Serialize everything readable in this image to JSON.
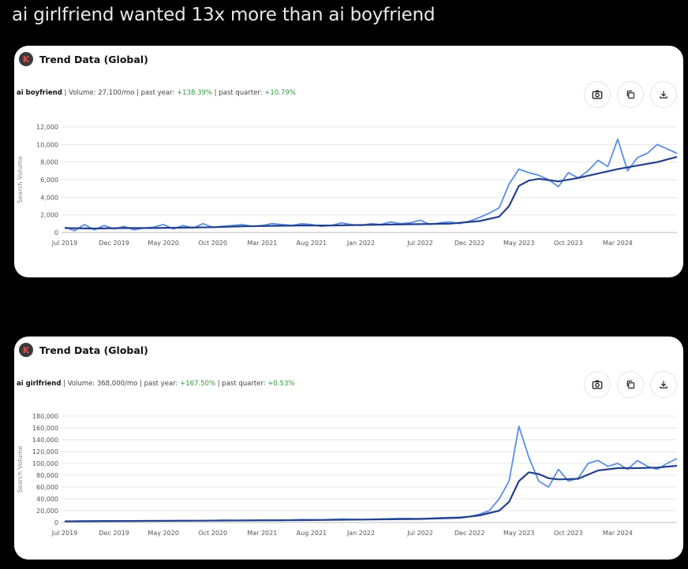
{
  "post": {
    "title": "ai girlfriend wanted 13x more than ai boyfriend"
  },
  "cards": [
    {
      "logo_letter": "K",
      "header_title": "Trend Data (Global)",
      "keyword": "ai boyfriend",
      "volume": " | Volume: 27,100/mo | past year: ",
      "past_year": "+138.39%",
      "sep": " | past quarter: ",
      "past_quarter": "+10.79%",
      "icons": [
        "camera-icon",
        "copy-icon",
        "download-icon"
      ]
    },
    {
      "logo_letter": "K",
      "header_title": "Trend Data (Global)",
      "keyword": "ai girlfriend",
      "volume": " | Volume: 368,000/mo | past year: ",
      "past_year": "+167.50%",
      "sep": " | past quarter: ",
      "past_quarter": "+0.53%",
      "icons": [
        "camera-icon",
        "copy-icon",
        "download-icon"
      ]
    }
  ],
  "chart_data": [
    {
      "type": "line",
      "ylabel": "Search Volume",
      "ylim": [
        0,
        12000
      ],
      "yticks": [
        "0",
        "2,000",
        "4,000",
        "6,000",
        "8,000",
        "10,000",
        "12,000"
      ],
      "yvalues": [
        0,
        2000,
        4000,
        6000,
        8000,
        10000,
        12000
      ],
      "xticks": [
        "Jul 2019",
        "Dec 2019",
        "May 2020",
        "Oct 2020",
        "Mar 2021",
        "Aug 2021",
        "Jan 2022",
        "Jul 2022",
        "Dec 2022",
        "May 2023",
        "Oct 2023",
        "Mar 2024"
      ],
      "xtick_months": [
        0,
        5,
        10,
        15,
        20,
        25,
        30,
        36,
        41,
        46,
        51,
        56
      ],
      "xmax_months": 62,
      "series": [
        {
          "color": "#5b8ee6",
          "months": [
            0,
            1,
            2,
            3,
            4,
            5,
            6,
            7,
            8,
            9,
            10,
            11,
            12,
            13,
            14,
            15,
            16,
            17,
            18,
            19,
            20,
            21,
            22,
            23,
            24,
            25,
            26,
            27,
            28,
            29,
            30,
            31,
            32,
            33,
            34,
            35,
            36,
            37,
            38,
            39,
            40,
            41,
            42,
            43,
            44,
            45,
            46,
            47,
            48,
            49,
            50,
            51,
            52,
            53,
            54,
            55,
            56,
            57,
            58,
            59,
            60,
            61,
            62
          ],
          "values": [
            600,
            200,
            900,
            300,
            800,
            400,
            700,
            300,
            500,
            600,
            900,
            400,
            800,
            500,
            1000,
            600,
            700,
            800,
            900,
            700,
            800,
            1000,
            900,
            800,
            1000,
            900,
            700,
            800,
            1100,
            900,
            800,
            1000,
            900,
            1200,
            1000,
            1100,
            1400,
            900,
            1100,
            1200,
            1000,
            1300,
            1700,
            2200,
            2800,
            5500,
            7200,
            6800,
            6500,
            6000,
            5200,
            6800,
            6200,
            7000,
            8200,
            7500,
            10600,
            7000,
            8500,
            9000,
            10000,
            9500,
            9000
          ]
        },
        {
          "color": "#23418a",
          "months": [
            0,
            3,
            6,
            9,
            12,
            15,
            18,
            21,
            24,
            27,
            30,
            33,
            36,
            39,
            42,
            44,
            45,
            46,
            47,
            48,
            50,
            52,
            54,
            56,
            58,
            60,
            62
          ],
          "values": [
            500,
            450,
            500,
            500,
            550,
            600,
            700,
            750,
            800,
            800,
            850,
            900,
            950,
            1000,
            1300,
            1800,
            3000,
            5300,
            5900,
            6100,
            5800,
            6200,
            6700,
            7200,
            7600,
            8000,
            8600
          ]
        }
      ]
    },
    {
      "type": "line",
      "ylabel": "Search Volume",
      "ylim": [
        0,
        180000
      ],
      "yticks": [
        "0",
        "20,000",
        "40,000",
        "60,000",
        "80,000",
        "100,000",
        "120,000",
        "140,000",
        "160,000",
        "180,000"
      ],
      "yvalues": [
        0,
        20000,
        40000,
        60000,
        80000,
        100000,
        120000,
        140000,
        160000,
        180000
      ],
      "xticks": [
        "Jul 2019",
        "Dec 2019",
        "May 2020",
        "Oct 2020",
        "Mar 2021",
        "Aug 2021",
        "Jan 2022",
        "Jul 2022",
        "Dec 2022",
        "May 2023",
        "Oct 2023",
        "Mar 2024"
      ],
      "xtick_months": [
        0,
        5,
        10,
        15,
        20,
        25,
        30,
        36,
        41,
        46,
        51,
        56
      ],
      "xmax_months": 62,
      "series": [
        {
          "color": "#5b8ee6",
          "months": [
            0,
            2,
            4,
            6,
            8,
            10,
            12,
            14,
            16,
            18,
            20,
            22,
            24,
            26,
            28,
            30,
            32,
            34,
            36,
            38,
            40,
            41,
            42,
            43,
            44,
            45,
            46,
            47,
            48,
            49,
            50,
            51,
            52,
            53,
            54,
            55,
            56,
            57,
            58,
            59,
            60,
            61,
            62
          ],
          "values": [
            2000,
            2500,
            3000,
            2500,
            3000,
            3000,
            3500,
            3000,
            4000,
            3500,
            4000,
            3500,
            5000,
            4500,
            6000,
            5000,
            6000,
            7000,
            6500,
            8000,
            9000,
            10000,
            14000,
            20000,
            40000,
            70000,
            163000,
            110000,
            70000,
            60000,
            90000,
            70000,
            75000,
            100000,
            105000,
            95000,
            100000,
            90000,
            105000,
            95000,
            90000,
            100000,
            108000
          ]
        },
        {
          "color": "#23418a",
          "months": [
            0,
            6,
            12,
            18,
            24,
            30,
            36,
            40,
            42,
            44,
            45,
            46,
            47,
            48,
            49,
            50,
            52,
            54,
            56,
            58,
            60,
            62
          ],
          "values": [
            2000,
            2500,
            3000,
            3500,
            4000,
            5000,
            6000,
            8000,
            12000,
            20000,
            35000,
            70000,
            85000,
            82000,
            75000,
            73000,
            74000,
            88000,
            92000,
            92000,
            93000,
            96000
          ]
        }
      ]
    }
  ]
}
